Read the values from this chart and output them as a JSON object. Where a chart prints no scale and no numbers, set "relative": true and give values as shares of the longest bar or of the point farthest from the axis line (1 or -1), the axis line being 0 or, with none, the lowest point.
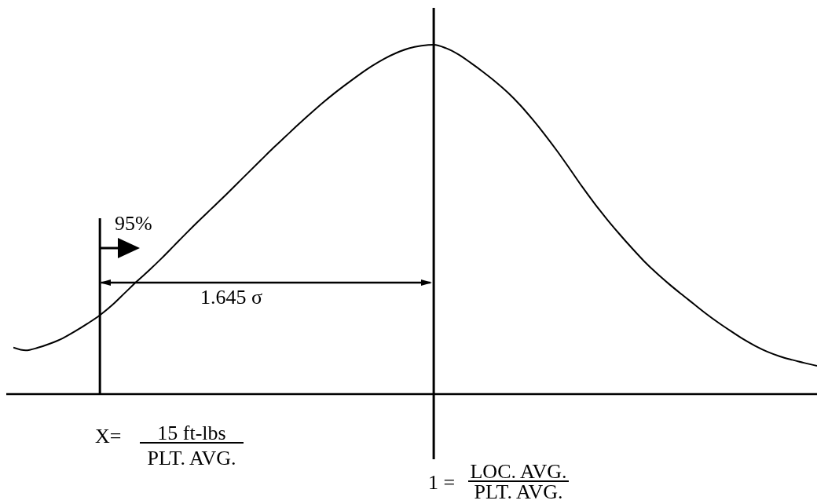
{
  "chart_data": {
    "type": "line",
    "relative": true,
    "categories": [
      null,
      null,
      null,
      null,
      null,
      null,
      null,
      null,
      null,
      null,
      null,
      null,
      null,
      null,
      null,
      null,
      null,
      null,
      null,
      null,
      null,
      null,
      null,
      null,
      null,
      null,
      null,
      null,
      null,
      null,
      null,
      null,
      null,
      null,
      null,
      null,
      null,
      null,
      null,
      null,
      null,
      null,
      null,
      null,
      null,
      null,
      null,
      null,
      null,
      null,
      null,
      null,
      null,
      null,
      null,
      null,
      null,
      null,
      null,
      null,
      null,
      null,
      null,
      null,
      null,
      null
    ],
    "values": [
      0.133,
      0.125,
      0.133,
      0.145,
      0.16,
      0.18,
      0.202,
      0.226,
      0.255,
      0.289,
      0.323,
      0.355,
      0.389,
      0.425,
      0.461,
      0.496,
      0.53,
      0.564,
      0.599,
      0.634,
      0.669,
      0.704,
      0.737,
      0.77,
      0.802,
      0.833,
      0.862,
      0.889,
      0.915,
      0.939,
      0.96,
      0.977,
      0.99,
      0.997,
      1,
      0.99,
      0.972,
      0.948,
      0.922,
      0.894,
      0.863,
      0.827,
      0.786,
      0.742,
      0.695,
      0.645,
      0.594,
      0.546,
      0.501,
      0.459,
      0.419,
      0.381,
      0.347,
      0.316,
      0.287,
      0.259,
      0.231,
      0.205,
      0.181,
      0.158,
      0.138,
      0.121,
      0.108,
      0.098,
      0.089,
      0.081
    ],
    "color": "#000000",
    "annotations": [
      "95%",
      "1.645 σ",
      "X=",
      "15 ft-lbs",
      "PLT. AVG.",
      "1 =",
      "LOC. AVG.",
      "PLT. AVG."
    ]
  }
}
